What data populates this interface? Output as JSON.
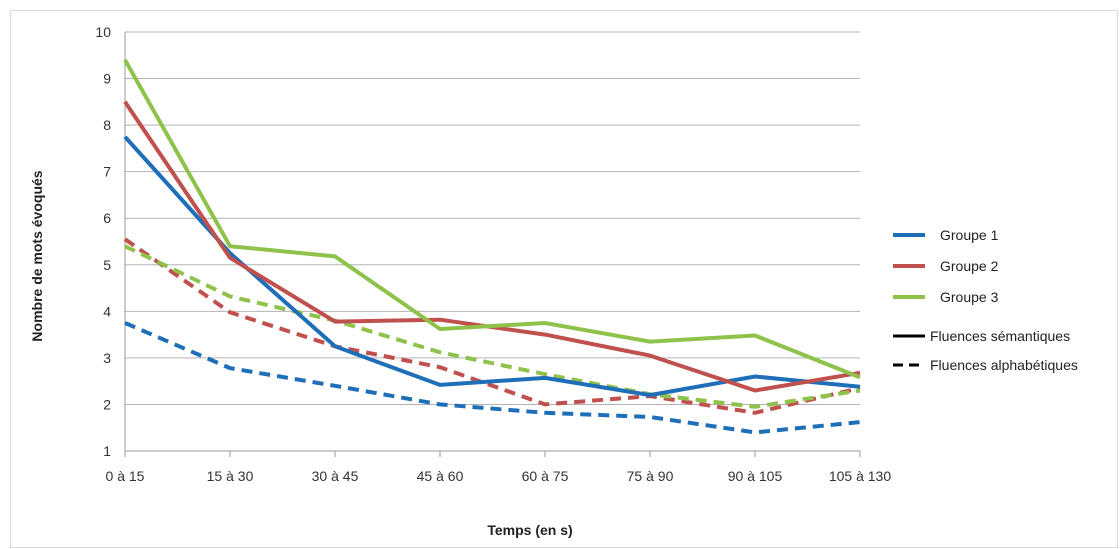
{
  "chart_data": {
    "type": "line",
    "xlabel": "Temps (en s)",
    "ylabel": "Nombre de mots évoqués",
    "categories": [
      "0 à 15",
      "15 à 30",
      "30 à 45",
      "45 à 60",
      "60 à 75",
      "75 à 90",
      "90 à 105",
      "105 à 130"
    ],
    "ylim": [
      1,
      10
    ],
    "yticks": [
      1,
      2,
      3,
      4,
      5,
      6,
      7,
      8,
      9,
      10
    ],
    "grid": "horizontal",
    "legend_position": "right",
    "series": [
      {
        "name": "Groupe 1",
        "group": 1,
        "style": "solid",
        "color": "#1f6fb8",
        "values": [
          7.75,
          5.25,
          3.25,
          2.42,
          2.57,
          2.2,
          2.6,
          2.38
        ]
      },
      {
        "name": "Groupe 2",
        "group": 2,
        "style": "solid",
        "color": "#c0504d",
        "values": [
          8.5,
          5.15,
          3.78,
          3.82,
          3.5,
          3.05,
          2.3,
          2.68
        ]
      },
      {
        "name": "Groupe 3",
        "group": 3,
        "style": "solid",
        "color": "#8fc24a",
        "values": [
          9.4,
          5.4,
          5.18,
          3.62,
          3.75,
          3.35,
          3.48,
          2.58
        ]
      },
      {
        "group": 1,
        "style": "dashed",
        "color": "#1f6fb8",
        "values": [
          3.75,
          2.78,
          2.4,
          2.0,
          1.82,
          1.73,
          1.4,
          1.62
        ]
      },
      {
        "group": 2,
        "style": "dashed",
        "color": "#c0504d",
        "values": [
          5.55,
          3.98,
          3.25,
          2.8,
          2.0,
          2.18,
          1.82,
          2.35
        ]
      },
      {
        "group": 3,
        "style": "dashed",
        "color": "#8fc24a",
        "values": [
          5.4,
          4.32,
          3.8,
          3.12,
          2.65,
          2.22,
          1.95,
          2.3
        ]
      }
    ],
    "legend": {
      "groups": [
        {
          "label": "Groupe 1",
          "color": "#1f6fb8"
        },
        {
          "label": "Groupe 2",
          "color": "#c0504d"
        },
        {
          "label": "Groupe 3",
          "color": "#8fc24a"
        }
      ],
      "styles": [
        {
          "label": "Fluences sémantiques",
          "style": "solid"
        },
        {
          "label": "Fluences alphabétiques",
          "style": "dashed"
        }
      ]
    }
  }
}
